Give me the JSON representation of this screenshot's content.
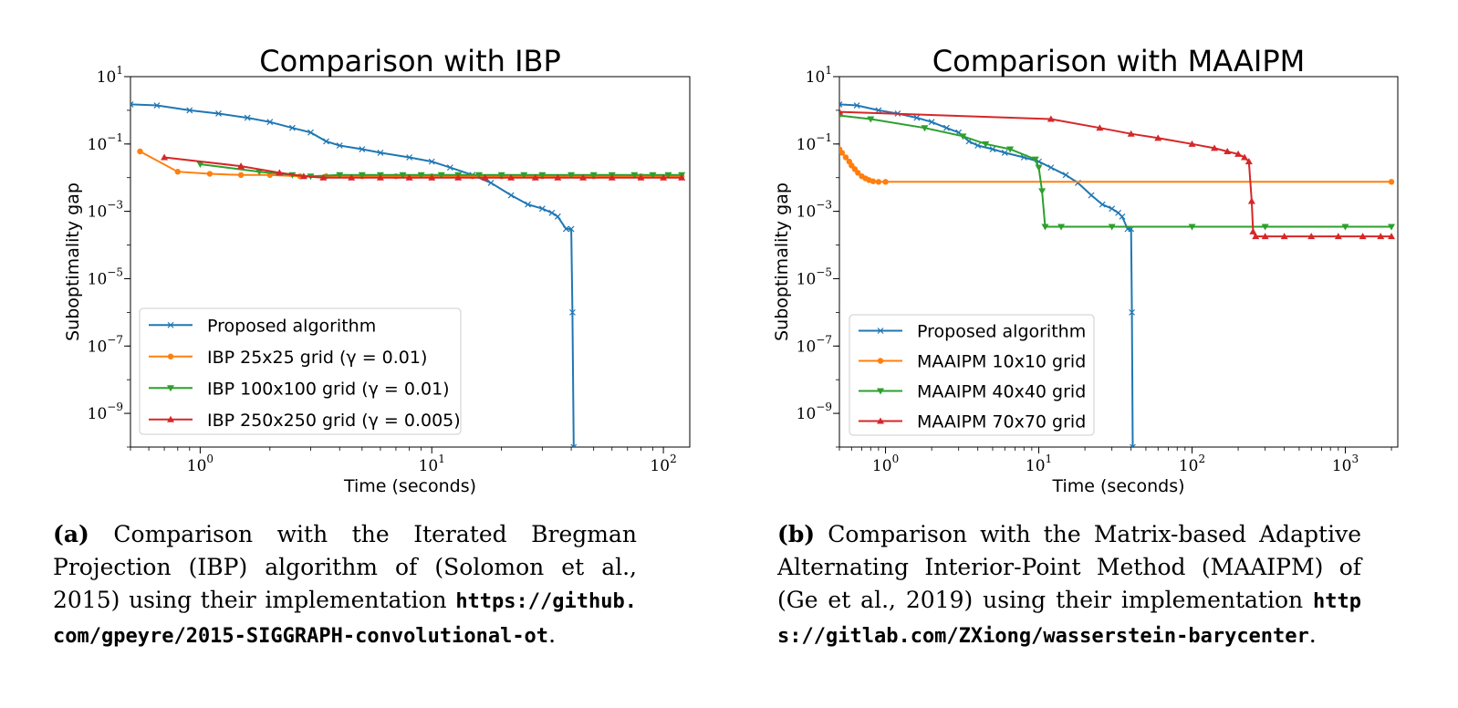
{
  "colors": {
    "blue": "#1f77b4",
    "orange": "#ff7f0e",
    "green": "#2ca02c",
    "red": "#d62728"
  },
  "chart_data": [
    {
      "type": "line",
      "title": "Comparison with IBP",
      "xlabel": "Time (seconds)",
      "ylabel": "Suboptimality gap",
      "xscale": "log",
      "yscale": "log",
      "xlim": [
        0.5,
        130
      ],
      "ylim": [
        1e-10,
        10
      ],
      "x_ticks": [
        {
          "v": 1,
          "base": "10",
          "exp": "0"
        },
        {
          "v": 10,
          "base": "10",
          "exp": "1"
        },
        {
          "v": 100,
          "base": "10",
          "exp": "2"
        }
      ],
      "y_ticks": [
        {
          "v": 10,
          "base": "10",
          "exp": "1"
        },
        {
          "v": 0.1,
          "base": "10",
          "exp": "−1"
        },
        {
          "v": 0.001,
          "base": "10",
          "exp": "−3"
        },
        {
          "v": 1e-05,
          "base": "10",
          "exp": "−5"
        },
        {
          "v": 1e-07,
          "base": "10",
          "exp": "−7"
        },
        {
          "v": 1e-09,
          "base": "10",
          "exp": "−9"
        }
      ],
      "legend_position": "lower-left",
      "series": [
        {
          "name": "Proposed algorithm",
          "color": "#1f77b4",
          "marker": "x",
          "x": [
            0.5,
            0.65,
            0.9,
            1.2,
            1.6,
            2.0,
            2.5,
            3.0,
            3.5,
            4.0,
            5.0,
            6.0,
            8.0,
            10.0,
            12.0,
            15.0,
            18.0,
            22.0,
            26.0,
            30.0,
            33.0,
            35.0,
            38.0,
            40.0,
            40.5,
            41.0
          ],
          "y": [
            1.5,
            1.4,
            1.0,
            0.8,
            0.6,
            0.45,
            0.3,
            0.22,
            0.12,
            0.09,
            0.07,
            0.055,
            0.04,
            0.03,
            0.02,
            0.012,
            0.007,
            0.003,
            0.0016,
            0.0012,
            0.0009,
            0.0007,
            0.0003,
            0.0003,
            1e-06,
            1e-10
          ]
        },
        {
          "name": "IBP 25x25 grid (γ = 0.01)",
          "color": "#ff7f0e",
          "marker": "o",
          "x": [
            0.55,
            0.8,
            1.1,
            1.5,
            2.0,
            2.7,
            3.5,
            5,
            7,
            10,
            15,
            20,
            30,
            50,
            80,
            120
          ],
          "y": [
            0.06,
            0.015,
            0.013,
            0.012,
            0.012,
            0.011,
            0.011,
            0.011,
            0.011,
            0.011,
            0.011,
            0.011,
            0.011,
            0.011,
            0.011,
            0.011
          ]
        },
        {
          "name": "IBP 100x100 grid (γ = 0.01)",
          "color": "#2ca02c",
          "marker": "v",
          "x": [
            1.0,
            1.8,
            2.5,
            3.0,
            4.0,
            5.0,
            6.0,
            7.5,
            9.0,
            11.0,
            13.0,
            16.0,
            20.0,
            25.0,
            30.0,
            40.0,
            50.0,
            60.0,
            75.0,
            90.0,
            105.0,
            120.0
          ],
          "y": [
            0.025,
            0.015,
            0.012,
            0.011,
            0.012,
            0.012,
            0.012,
            0.012,
            0.012,
            0.012,
            0.012,
            0.012,
            0.012,
            0.012,
            0.012,
            0.012,
            0.012,
            0.012,
            0.012,
            0.012,
            0.012,
            0.012
          ]
        },
        {
          "name": "IBP 250x250 grid (γ = 0.005)",
          "color": "#d62728",
          "marker": "^",
          "x": [
            0.7,
            1.5,
            2.2,
            2.8,
            3.4,
            4.5,
            6.0,
            8.0,
            10.0,
            13.0,
            17.0,
            22.0,
            28.0,
            35.0,
            45.0,
            60.0,
            80.0,
            100.0,
            120.0
          ],
          "y": [
            0.04,
            0.022,
            0.014,
            0.011,
            0.01,
            0.01,
            0.01,
            0.01,
            0.01,
            0.01,
            0.01,
            0.01,
            0.01,
            0.01,
            0.01,
            0.01,
            0.01,
            0.01,
            0.01
          ]
        }
      ]
    },
    {
      "type": "line",
      "title": "Comparison with MAAIPM",
      "xlabel": "Time (seconds)",
      "ylabel": "Suboptimality gap",
      "xscale": "log",
      "yscale": "log",
      "xlim": [
        0.5,
        2200
      ],
      "ylim": [
        1e-10,
        10
      ],
      "x_ticks": [
        {
          "v": 1,
          "base": "10",
          "exp": "0"
        },
        {
          "v": 10,
          "base": "10",
          "exp": "1"
        },
        {
          "v": 100,
          "base": "10",
          "exp": "2"
        },
        {
          "v": 1000,
          "base": "10",
          "exp": "3"
        }
      ],
      "y_ticks": [
        {
          "v": 10,
          "base": "10",
          "exp": "1"
        },
        {
          "v": 0.1,
          "base": "10",
          "exp": "−1"
        },
        {
          "v": 0.001,
          "base": "10",
          "exp": "−3"
        },
        {
          "v": 1e-05,
          "base": "10",
          "exp": "−5"
        },
        {
          "v": 1e-07,
          "base": "10",
          "exp": "−7"
        },
        {
          "v": 1e-09,
          "base": "10",
          "exp": "−9"
        }
      ],
      "legend_position": "lower-left",
      "series": [
        {
          "name": "Proposed algorithm",
          "color": "#1f77b4",
          "marker": "x",
          "x": [
            0.5,
            0.65,
            0.9,
            1.2,
            1.6,
            2.0,
            2.5,
            3.0,
            3.5,
            4.0,
            5.0,
            6.0,
            8.0,
            10.0,
            12.0,
            15.0,
            18.0,
            22.0,
            26.0,
            30.0,
            33.0,
            35.0,
            38.0,
            40.0,
            40.5,
            41.0
          ],
          "y": [
            1.5,
            1.4,
            1.0,
            0.8,
            0.6,
            0.45,
            0.3,
            0.22,
            0.12,
            0.09,
            0.07,
            0.055,
            0.04,
            0.03,
            0.02,
            0.012,
            0.007,
            0.003,
            0.0016,
            0.0012,
            0.0009,
            0.0007,
            0.0003,
            0.0003,
            1e-06,
            1e-10
          ]
        },
        {
          "name": "MAAIPM 10x10 grid",
          "color": "#ff7f0e",
          "marker": "o",
          "x": [
            0.5,
            0.52,
            0.55,
            0.58,
            0.6,
            0.63,
            0.66,
            0.7,
            0.74,
            0.78,
            0.83,
            0.9,
            1.0,
            2000
          ],
          "y": [
            0.07,
            0.055,
            0.04,
            0.03,
            0.023,
            0.018,
            0.014,
            0.011,
            0.0095,
            0.0085,
            0.0078,
            0.0075,
            0.0075,
            0.0075
          ]
        },
        {
          "name": "MAAIPM 40x40 grid",
          "color": "#2ca02c",
          "marker": "v",
          "x": [
            0.5,
            0.8,
            1.8,
            3.2,
            4.5,
            6.5,
            9.5,
            10.0,
            10.5,
            11.0,
            14.0,
            30.0,
            100.0,
            300.0,
            1000.0,
            2000.0
          ],
          "y": [
            0.7,
            0.55,
            0.3,
            0.17,
            0.1,
            0.07,
            0.035,
            0.02,
            0.004,
            0.00035,
            0.00035,
            0.00035,
            0.00035,
            0.00035,
            0.00035,
            0.00035
          ]
        },
        {
          "name": "MAAIPM 70x70 grid",
          "color": "#d62728",
          "marker": "^",
          "x": [
            0.5,
            12.0,
            25.0,
            40.0,
            60.0,
            100.0,
            140.0,
            170.0,
            200.0,
            220.0,
            235.0,
            245.0,
            250.0,
            260.0,
            300.0,
            400.0,
            600.0,
            900.0,
            1300.0,
            1700.0,
            2000.0
          ],
          "y": [
            0.9,
            0.55,
            0.3,
            0.2,
            0.15,
            0.1,
            0.075,
            0.06,
            0.05,
            0.04,
            0.03,
            0.002,
            0.00025,
            0.00018,
            0.00018,
            0.00018,
            0.00018,
            0.00018,
            0.00018,
            0.00018,
            0.00018
          ]
        }
      ]
    }
  ],
  "captions": [
    {
      "label": "(a)",
      "text": "Comparison with the Iterated Bregman Projection (IBP) algorithm of (Solomon et al., 2015) using their implementation",
      "url": "https://github.com/gpeyre/2015-SIGGRAPH-convolutional-ot",
      "end": "."
    },
    {
      "label": "(b)",
      "text": "Comparison with the Matrix-based Adaptive Alternating Interior-Point Method (MAAIPM) of (Ge et al., 2019) using their implementation",
      "url": "https://gitlab.com/ZXiong/wasserstein-barycenter",
      "end": "."
    }
  ]
}
